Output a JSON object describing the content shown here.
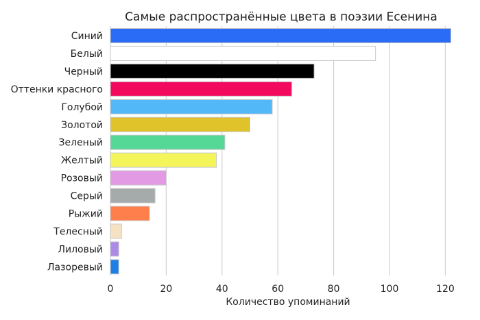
{
  "chart_data": {
    "type": "bar",
    "orientation": "horizontal",
    "title": "Самые распространённые цвета в поэзии Есенина",
    "xlabel": "Количество упоминаний",
    "ylabel": "",
    "xlim": [
      0,
      125
    ],
    "xticks": [
      0,
      20,
      40,
      60,
      80,
      100,
      120
    ],
    "grid": "vertical",
    "categories": [
      "Синий",
      "Белый",
      "Черный",
      "Оттенки красного",
      "Голубой",
      "Золотой",
      "Зеленый",
      "Желтый",
      "Розовый",
      "Серый",
      "Рыжий",
      "Телесный",
      "Лиловый",
      "Лазоревый"
    ],
    "values": [
      122,
      95,
      73,
      65,
      58,
      50,
      41,
      38,
      20,
      16,
      14,
      4,
      3,
      3
    ],
    "colors": [
      "#2b6cf7",
      "#ffffff",
      "#000000",
      "#f20a5e",
      "#53b8f7",
      "#e0c22a",
      "#55d796",
      "#f4f55a",
      "#e29ae4",
      "#a5aaab",
      "#fe7f4b",
      "#f6e1c3",
      "#ac8be6",
      "#1f7fe2"
    ]
  }
}
